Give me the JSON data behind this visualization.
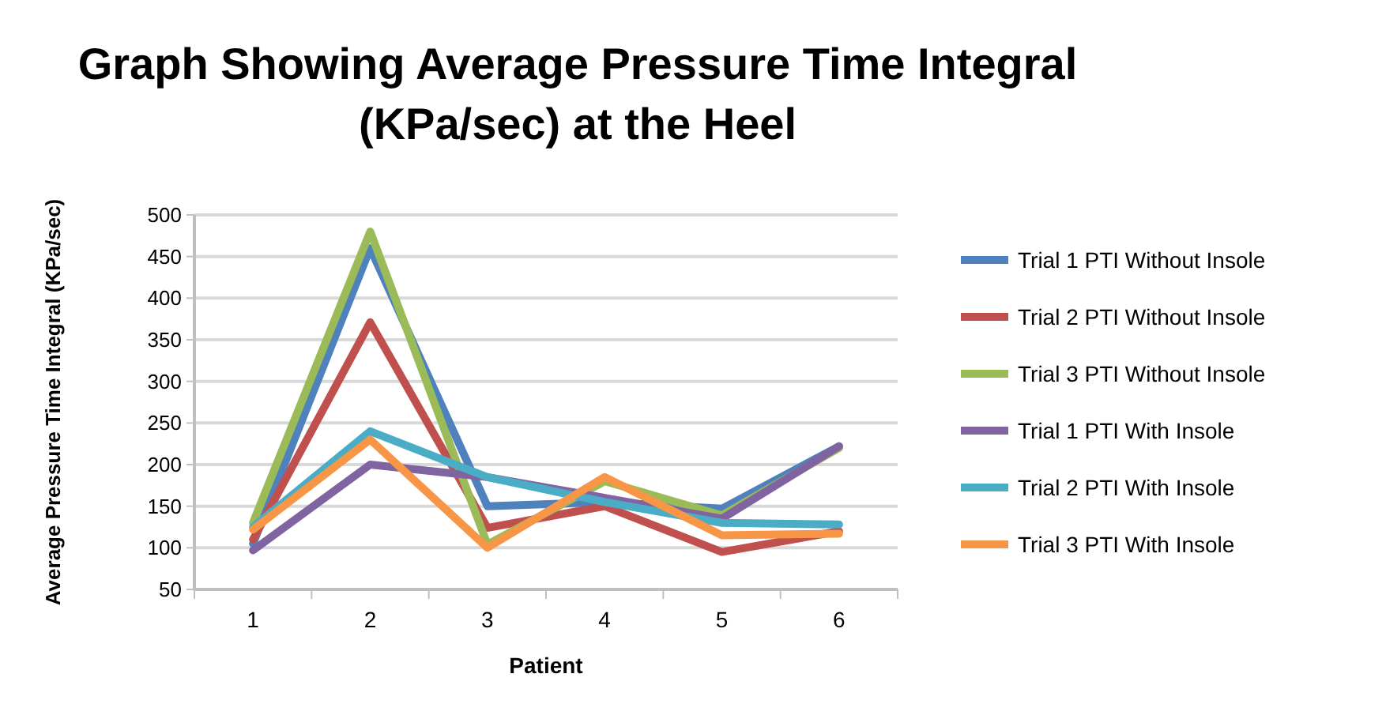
{
  "chart_data": {
    "type": "line",
    "title": "Graph Showing Average Pressure Time Integral (KPa/sec) at the Heel",
    "xlabel": "Patient",
    "ylabel": "Average Pressure Time Integral (KPa/sec)",
    "categories": [
      "1",
      "2",
      "3",
      "4",
      "5",
      "6"
    ],
    "ylim": [
      50,
      500
    ],
    "yticks": [
      50,
      100,
      150,
      200,
      250,
      300,
      350,
      400,
      450,
      500
    ],
    "grid": "y",
    "legend": "right",
    "marker": "none",
    "line_style": "solid",
    "series": [
      {
        "name": "Trial 1 PTI Without Insole",
        "color": "#4f81bd",
        "values": [
          105,
          460,
          150,
          155,
          147,
          222
        ]
      },
      {
        "name": "Trial 2 PTI Without Insole",
        "color": "#c0504d",
        "values": [
          110,
          371,
          124,
          150,
          95,
          120
        ]
      },
      {
        "name": "Trial 3 PTI Without Insole",
        "color": "#9bbb59",
        "values": [
          130,
          480,
          104,
          180,
          139,
          220
        ]
      },
      {
        "name": "Trial 1 PTI With Insole",
        "color": "#8064a2",
        "values": [
          97,
          200,
          185,
          160,
          135,
          222
        ]
      },
      {
        "name": "Trial 2 PTI With Insole",
        "color": "#4bacc6",
        "values": [
          125,
          240,
          185,
          155,
          130,
          128
        ]
      },
      {
        "name": "Trial 3 PTI With Insole",
        "color": "#f79646",
        "values": [
          122,
          230,
          100,
          185,
          115,
          117
        ]
      }
    ]
  }
}
